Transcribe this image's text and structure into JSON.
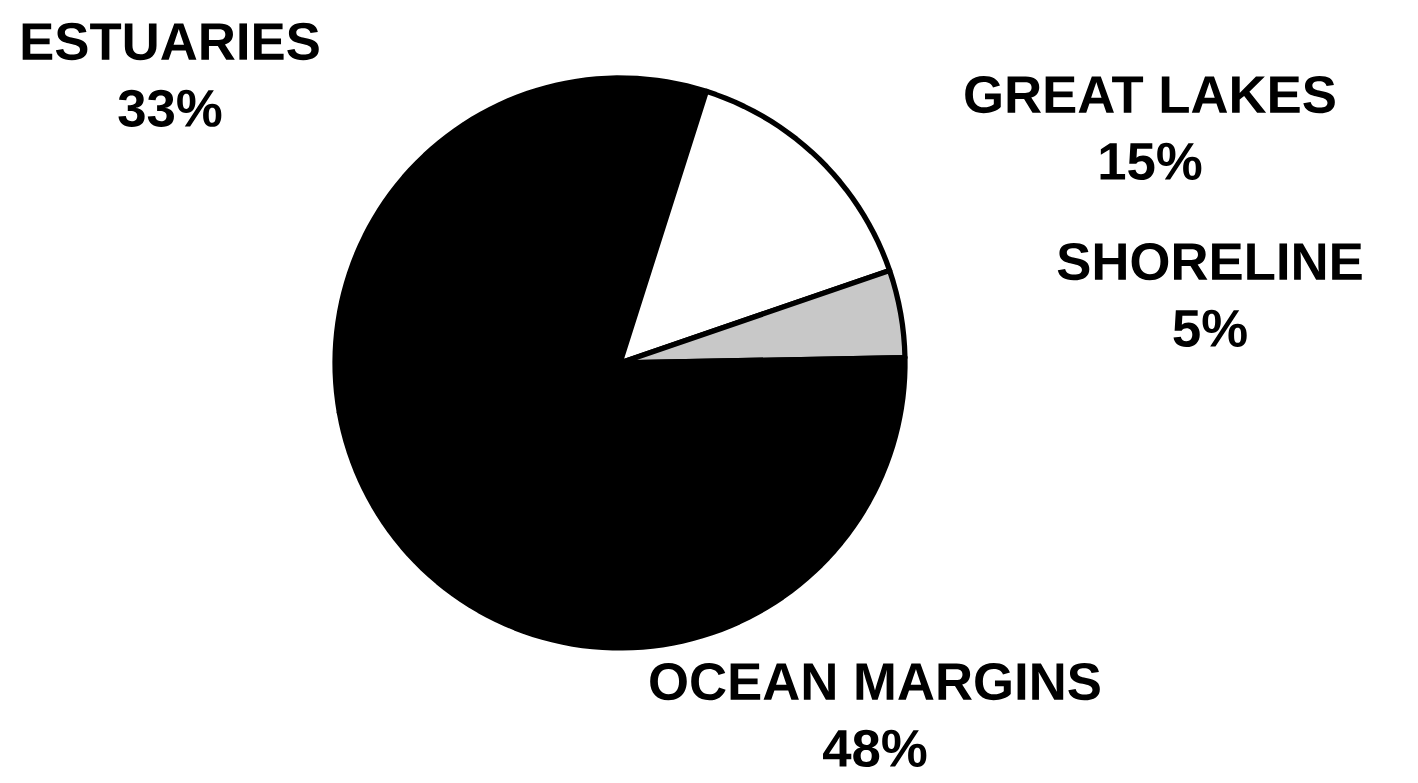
{
  "chart_data": {
    "type": "pie",
    "categories": [
      "ESTUARIES",
      "GREAT LAKES",
      "SHORELINE",
      "OCEAN MARGINS"
    ],
    "values": [
      33,
      15,
      5,
      48
    ],
    "value_labels": [
      "33%",
      "15%",
      "5%",
      "48%"
    ],
    "colors": [
      "#000000",
      "#ffffff",
      "#c8c8c8",
      "#000000"
    ]
  }
}
